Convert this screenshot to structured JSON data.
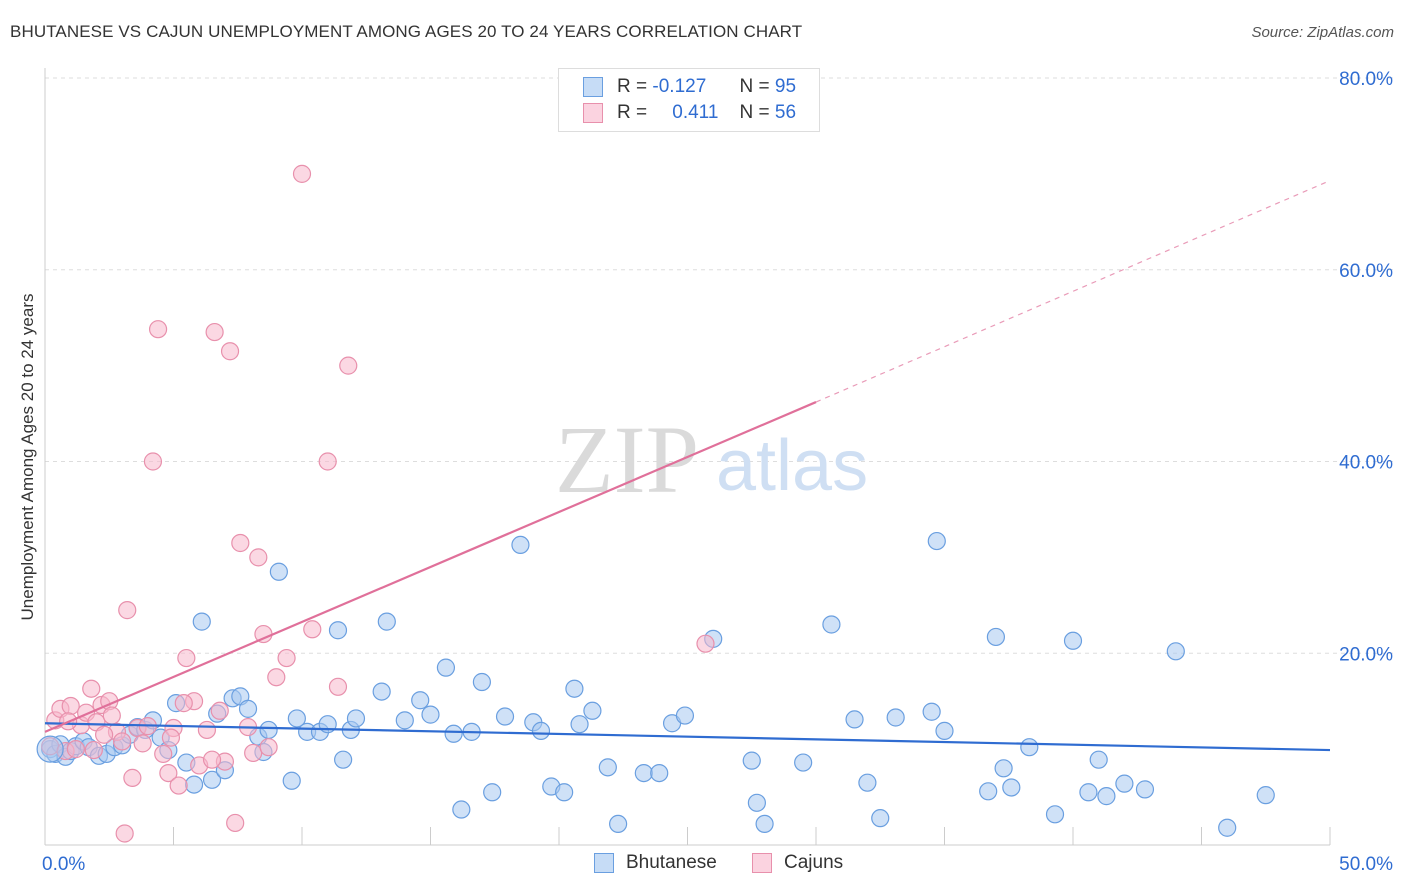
{
  "title": "BHUTANESE VS CAJUN UNEMPLOYMENT AMONG AGES 20 TO 24 YEARS CORRELATION CHART",
  "source": "Source: ZipAtlas.com",
  "watermark": {
    "zip": "ZIP",
    "atlas": "atlas"
  },
  "legend_top": {
    "series1": {
      "r_label": "R =",
      "r_value": "-0.127",
      "n_label": "N =",
      "n_value": "95"
    },
    "series2": {
      "r_label": "R =",
      "r_value": "0.411",
      "n_label": "N =",
      "n_value": "56"
    }
  },
  "bottom_legend": {
    "series1": "Bhutanese",
    "series2": "Cajuns"
  },
  "colors": {
    "blue_fill": "#a8c8f0",
    "blue_stroke": "#6a9fe0",
    "blue_line": "#2f6cd1",
    "pink_fill": "#f7b8cc",
    "pink_stroke": "#e890ac",
    "pink_line": "#e0709a",
    "tick_label": "#2f6cd1",
    "grid": "#dddddd"
  },
  "chart_data": {
    "type": "scatter",
    "title": "BHUTANESE VS CAJUN UNEMPLOYMENT AMONG AGES 20 TO 24 YEARS CORRELATION CHART",
    "xlabel": "",
    "ylabel": "Unemployment Among Ages 20 to 24 years",
    "xlim": [
      0,
      50
    ],
    "ylim": [
      0,
      80
    ],
    "x_tick_labels": [
      "0.0%",
      "50.0%"
    ],
    "y_tick_labels": [
      "20.0%",
      "40.0%",
      "60.0%",
      "80.0%"
    ],
    "y_ticks": [
      20,
      40,
      60,
      80
    ],
    "grid": true,
    "legend_position": "top-center",
    "series": [
      {
        "name": "Bhutanese",
        "r": -0.127,
        "n": 95,
        "trend": {
          "x": [
            0,
            50
          ],
          "y": [
            12.7,
            9.9
          ]
        },
        "points": [
          [
            0.2,
            10
          ],
          [
            0.4,
            9.5
          ],
          [
            0.6,
            10.5
          ],
          [
            0.8,
            9.2
          ],
          [
            1.0,
            9.8
          ],
          [
            1.2,
            10.3
          ],
          [
            1.5,
            10.8
          ],
          [
            1.7,
            10.2
          ],
          [
            2.1,
            9.3
          ],
          [
            2.4,
            9.5
          ],
          [
            2.7,
            10.2
          ],
          [
            3.0,
            10.4
          ],
          [
            3.3,
            11.5
          ],
          [
            3.6,
            12.3
          ],
          [
            3.9,
            12.0
          ],
          [
            4.2,
            13.0
          ],
          [
            4.5,
            11.2
          ],
          [
            4.8,
            9.9
          ],
          [
            5.1,
            14.8
          ],
          [
            5.5,
            8.6
          ],
          [
            5.8,
            6.3
          ],
          [
            6.1,
            23.3
          ],
          [
            6.5,
            6.8
          ],
          [
            6.7,
            13.7
          ],
          [
            7.0,
            7.8
          ],
          [
            7.3,
            15.3
          ],
          [
            7.6,
            15.5
          ],
          [
            7.9,
            14.2
          ],
          [
            8.3,
            11.3
          ],
          [
            8.5,
            9.7
          ],
          [
            8.7,
            12.0
          ],
          [
            9.1,
            28.5
          ],
          [
            9.6,
            6.7
          ],
          [
            9.8,
            13.2
          ],
          [
            10.2,
            11.8
          ],
          [
            10.7,
            11.8
          ],
          [
            11.0,
            12.6
          ],
          [
            11.4,
            22.4
          ],
          [
            11.6,
            8.9
          ],
          [
            11.9,
            12.0
          ],
          [
            12.1,
            13.2
          ],
          [
            13.3,
            23.3
          ],
          [
            13.1,
            16.0
          ],
          [
            14.0,
            13.0
          ],
          [
            14.6,
            15.1
          ],
          [
            15.0,
            13.6
          ],
          [
            15.6,
            18.5
          ],
          [
            15.9,
            11.6
          ],
          [
            16.2,
            3.7
          ],
          [
            16.6,
            11.8
          ],
          [
            17.0,
            17.0
          ],
          [
            17.4,
            5.5
          ],
          [
            17.9,
            13.4
          ],
          [
            18.5,
            31.3
          ],
          [
            19.0,
            12.8
          ],
          [
            19.3,
            11.9
          ],
          [
            19.7,
            6.1
          ],
          [
            20.2,
            5.5
          ],
          [
            20.6,
            16.3
          ],
          [
            20.8,
            12.6
          ],
          [
            21.3,
            14.0
          ],
          [
            21.9,
            8.1
          ],
          [
            22.3,
            2.2
          ],
          [
            23.3,
            7.5
          ],
          [
            23.9,
            7.5
          ],
          [
            24.4,
            12.7
          ],
          [
            24.9,
            13.5
          ],
          [
            26.0,
            21.5
          ],
          [
            27.5,
            8.8
          ],
          [
            27.7,
            4.4
          ],
          [
            28.0,
            2.2
          ],
          [
            29.5,
            8.6
          ],
          [
            30.6,
            23.0
          ],
          [
            31.5,
            13.1
          ],
          [
            32.0,
            6.5
          ],
          [
            32.5,
            2.8
          ],
          [
            33.1,
            13.3
          ],
          [
            34.5,
            13.9
          ],
          [
            34.7,
            31.7
          ],
          [
            35.0,
            11.9
          ],
          [
            36.7,
            5.6
          ],
          [
            37.0,
            21.7
          ],
          [
            37.3,
            8.0
          ],
          [
            37.6,
            6.0
          ],
          [
            38.3,
            10.2
          ],
          [
            39.3,
            3.2
          ],
          [
            40.0,
            21.3
          ],
          [
            40.6,
            5.5
          ],
          [
            41.0,
            8.9
          ],
          [
            41.3,
            5.1
          ],
          [
            42.0,
            6.4
          ],
          [
            42.8,
            5.8
          ],
          [
            44.0,
            20.2
          ],
          [
            46.0,
            1.8
          ],
          [
            47.5,
            5.2
          ]
        ]
      },
      {
        "name": "Cajuns",
        "r": 0.411,
        "n": 56,
        "trend": {
          "x": [
            0,
            30
          ],
          "y": [
            11.8,
            46.2
          ],
          "x_dashed": [
            30,
            50
          ],
          "y_dashed": [
            46.2,
            69.3
          ]
        },
        "points": [
          [
            0.2,
            10.3
          ],
          [
            0.4,
            13.0
          ],
          [
            0.6,
            14.2
          ],
          [
            0.8,
            9.8
          ],
          [
            1.0,
            14.5
          ],
          [
            1.2,
            10.0
          ],
          [
            1.4,
            12.5
          ],
          [
            1.6,
            13.8
          ],
          [
            1.8,
            16.3
          ],
          [
            2.0,
            12.8
          ],
          [
            2.2,
            14.6
          ],
          [
            2.5,
            15.0
          ],
          [
            2.8,
            11.8
          ],
          [
            3.0,
            10.8
          ],
          [
            3.2,
            24.5
          ],
          [
            3.4,
            7.0
          ],
          [
            3.6,
            12.2
          ],
          [
            3.8,
            10.6
          ],
          [
            4.0,
            12.4
          ],
          [
            4.2,
            40.0
          ],
          [
            4.4,
            53.8
          ],
          [
            4.6,
            9.5
          ],
          [
            4.8,
            7.5
          ],
          [
            5.0,
            12.2
          ],
          [
            5.2,
            6.2
          ],
          [
            5.5,
            19.5
          ],
          [
            5.8,
            15.0
          ],
          [
            6.0,
            8.3
          ],
          [
            6.3,
            12.0
          ],
          [
            6.6,
            53.5
          ],
          [
            6.8,
            14.0
          ],
          [
            7.0,
            8.7
          ],
          [
            7.2,
            51.5
          ],
          [
            7.4,
            2.3
          ],
          [
            7.6,
            31.5
          ],
          [
            7.9,
            12.3
          ],
          [
            8.1,
            9.6
          ],
          [
            8.3,
            30.0
          ],
          [
            8.5,
            22.0
          ],
          [
            8.7,
            10.2
          ],
          [
            9.0,
            17.5
          ],
          [
            9.4,
            19.5
          ],
          [
            10.0,
            70.0
          ],
          [
            10.4,
            22.5
          ],
          [
            11.0,
            40.0
          ],
          [
            11.4,
            16.5
          ],
          [
            11.8,
            50.0
          ],
          [
            25.7,
            21.0
          ],
          [
            3.1,
            1.2
          ],
          [
            2.6,
            13.5
          ],
          [
            1.9,
            9.9
          ],
          [
            0.9,
            12.9
          ],
          [
            5.4,
            14.8
          ],
          [
            6.5,
            8.9
          ],
          [
            4.9,
            11.2
          ],
          [
            2.3,
            11.5
          ]
        ]
      }
    ]
  }
}
